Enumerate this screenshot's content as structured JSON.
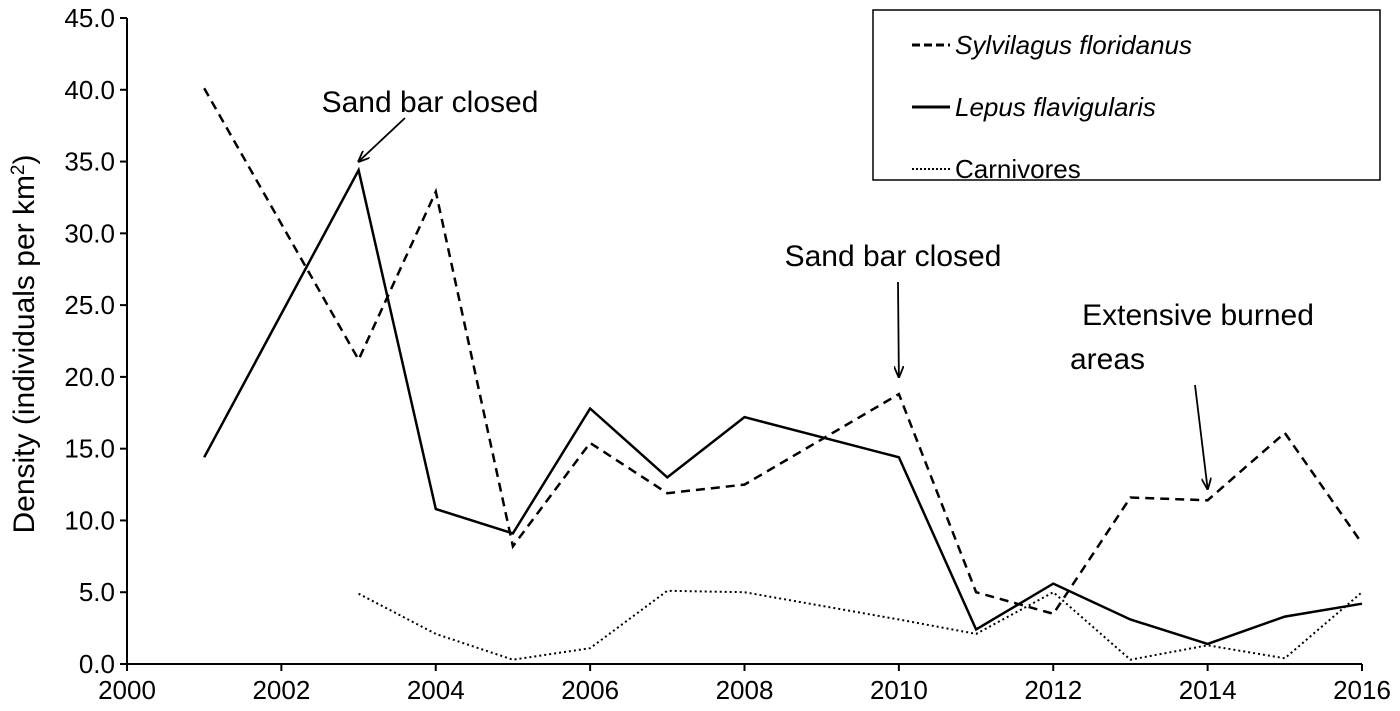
{
  "chart_data": {
    "type": "line",
    "ylabel": "Density (individuals per km",
    "ylabel_sup": "2",
    "ylabel_close": ")",
    "xlabel": "",
    "xlim": [
      2000,
      2016
    ],
    "ylim": [
      0,
      45
    ],
    "x_ticks": [
      "2000",
      "2002",
      "2004",
      "2006",
      "2008",
      "2010",
      "2012",
      "2014",
      "2016"
    ],
    "y_ticks": [
      "0.0",
      "5.0",
      "10.0",
      "15.0",
      "20.0",
      "25.0",
      "30.0",
      "35.0",
      "40.0",
      "45.0"
    ],
    "grid": false,
    "legend": "top-right",
    "series": [
      {
        "name": "Sylvilagus floridanus",
        "style": "dashed",
        "italic": true,
        "x": [
          2001,
          2003,
          2004,
          2005,
          2006,
          2007,
          2008,
          2010,
          2011,
          2012,
          2013,
          2014,
          2015,
          2016
        ],
        "y": [
          40.1,
          21.2,
          32.9,
          8.2,
          15.4,
          11.9,
          12.5,
          18.8,
          5.0,
          3.5,
          11.6,
          11.4,
          16.1,
          8.4
        ]
      },
      {
        "name": "Lepus flavigularis",
        "style": "solid",
        "italic": true,
        "x": [
          2001,
          2003,
          2004,
          2005,
          2006,
          2007,
          2008,
          2010,
          2011,
          2012,
          2013,
          2014,
          2015,
          2016
        ],
        "y": [
          14.4,
          34.4,
          10.8,
          9.1,
          17.8,
          13.0,
          17.2,
          14.4,
          2.4,
          5.6,
          3.1,
          1.4,
          3.3,
          4.2
        ]
      },
      {
        "name": "Carnivores",
        "style": "dotted",
        "italic": false,
        "x": [
          2003,
          2004,
          2005,
          2006,
          2007,
          2008,
          2010,
          2011,
          2012,
          2013,
          2014,
          2015,
          2016
        ],
        "y": [
          4.9,
          2.1,
          0.3,
          1.1,
          5.1,
          5.0,
          3.1,
          2.1,
          5.0,
          0.3,
          1.3,
          0.4,
          5.0
        ]
      }
    ],
    "annotations": [
      {
        "lines": [
          "Sand bar closed"
        ],
        "x": 2003,
        "y": 35.0,
        "direction": "from-upper-right"
      },
      {
        "lines": [
          "Sand bar closed"
        ],
        "x": 2010,
        "y": 20.0,
        "direction": "from-above"
      },
      {
        "lines": [
          "Extensive burned",
          "areas"
        ],
        "x": 2014,
        "y": 12.2,
        "direction": "from-above"
      }
    ]
  }
}
